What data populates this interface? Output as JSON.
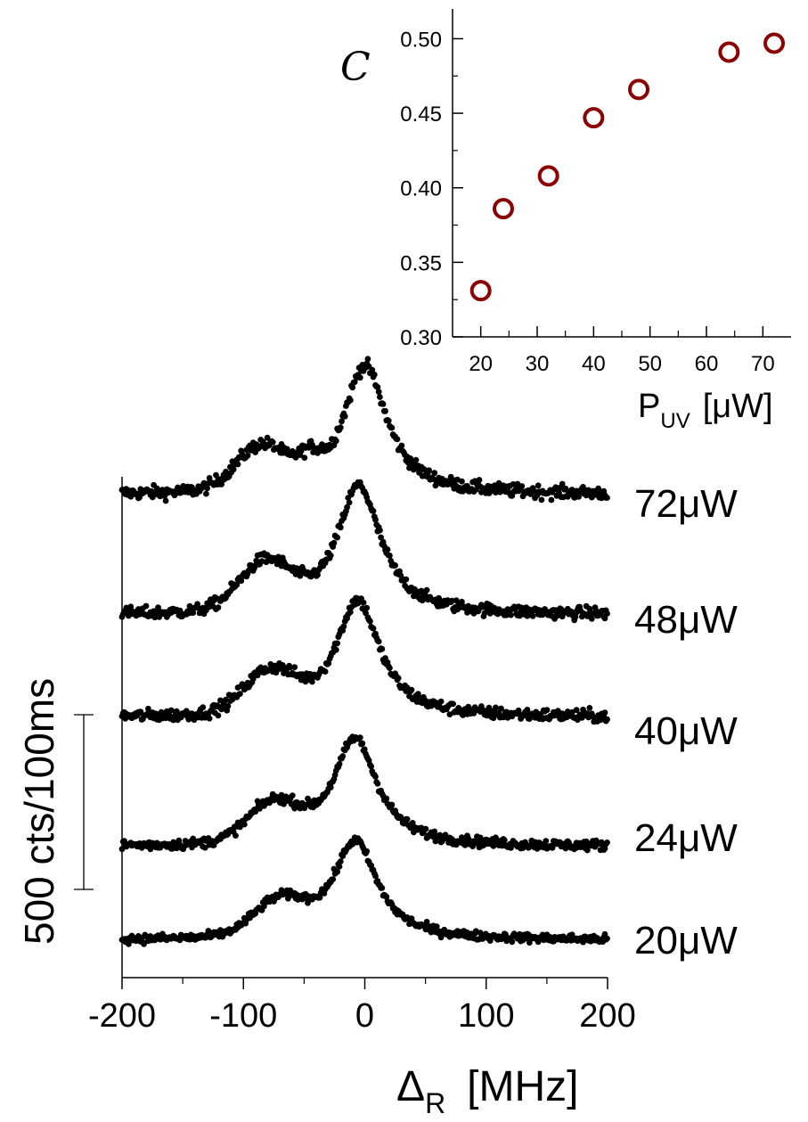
{
  "chart_data": [
    {
      "type": "scatter",
      "title": "",
      "xlabel": "P",
      "xlabel_sub": "UV",
      "xlabel_unit": "[μW]",
      "ylabel": "C",
      "xlim": [
        15,
        75
      ],
      "ylim": [
        0.3,
        0.52
      ],
      "xticks": [
        "20",
        "30",
        "40",
        "50",
        "60",
        "70"
      ],
      "yticks": [
        "0.30",
        "0.35",
        "0.40",
        "0.45",
        "0.50"
      ],
      "marker_color": "#8b0000",
      "series": [
        {
          "x": [
            20,
            24,
            32,
            40,
            48,
            64,
            72
          ],
          "y": [
            0.331,
            0.386,
            0.408,
            0.447,
            0.466,
            0.491,
            0.497
          ]
        }
      ]
    },
    {
      "type": "scatter",
      "title": "",
      "xlabel": "Δ",
      "xlabel_sub": "R",
      "xlabel_unit": "[MHz]",
      "ylabel": "500 cts/100ms",
      "xlim": [
        -200,
        200
      ],
      "xticks": [
        "-200",
        "-100",
        "0",
        "100",
        "200"
      ],
      "marker_color": "#000000",
      "scale_bar": "500 cts/100ms",
      "series": [
        {
          "name": "72μW",
          "baseline": 0,
          "main_peak": [
            0,
            1.0
          ],
          "side_peak": [
            -85,
            0.33
          ],
          "noise": 0.05
        },
        {
          "name": "48μW",
          "baseline": 0,
          "main_peak": [
            -5,
            0.97
          ],
          "side_peak": [
            -82,
            0.35
          ],
          "noise": 0.045
        },
        {
          "name": "40μW",
          "baseline": 0,
          "main_peak": [
            -6,
            0.88
          ],
          "side_peak": [
            -78,
            0.3
          ],
          "noise": 0.045
        },
        {
          "name": "24μW",
          "baseline": 0,
          "main_peak": [
            -8,
            0.87
          ],
          "side_peak": [
            -75,
            0.3
          ],
          "noise": 0.04
        },
        {
          "name": "20μW",
          "baseline": 0,
          "main_peak": [
            -8,
            0.8
          ],
          "side_peak": [
            -70,
            0.27
          ],
          "noise": 0.035
        }
      ]
    }
  ]
}
